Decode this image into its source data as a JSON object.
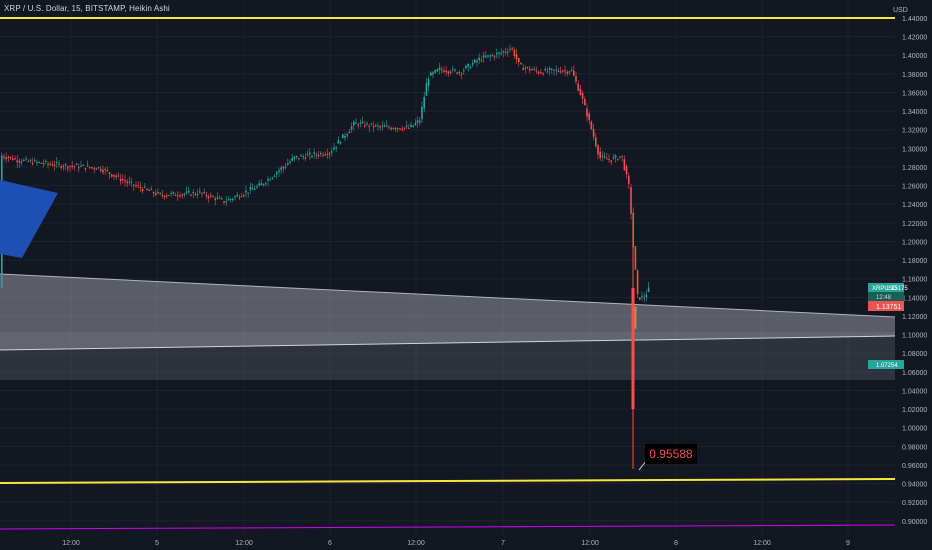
{
  "header": {
    "title": "XRP / U.S. Dollar, 15, BITSTAMP, Heikin Ashi"
  },
  "price_axis": {
    "currency": "USD",
    "ticks": [
      "1.44000",
      "1.42000",
      "1.40000",
      "1.38000",
      "1.36000",
      "1.34000",
      "1.32000",
      "1.30000",
      "1.28000",
      "1.26000",
      "1.24000",
      "1.22000",
      "1.20000",
      "1.18000",
      "1.16000",
      "1.14000",
      "1.12000",
      "1.10000",
      "1.08000",
      "1.06000",
      "1.04000",
      "1.02000",
      "1.00000",
      "0.98000",
      "0.96000",
      "0.94000",
      "0.92000",
      "0.90000"
    ]
  },
  "time_axis": {
    "ticks": [
      "12:00",
      "5",
      "12:00",
      "6",
      "12:00",
      "7",
      "12:00",
      "8",
      "12:00",
      "9"
    ]
  },
  "price_labels": {
    "current_label": "XRPUSD",
    "current_price": "1.15175",
    "countdown": "12:48",
    "open_price": "1.13751",
    "zone_price": "1.07254"
  },
  "annotation": {
    "low_label": "0.95588",
    "low_value": 0.95588
  },
  "colors": {
    "background": "#131722",
    "up": "#26a69a",
    "down": "#ef5350",
    "support_line": "#f5e73b",
    "magenta_line": "#d500f9",
    "arrow": "#1e50b4"
  },
  "chart_data": {
    "type": "candlestick",
    "style": "Heikin Ashi",
    "symbol": "XRP / U.S. Dollar",
    "exchange": "BITSTAMP",
    "interval": "15",
    "ylim": [
      0.895,
      1.445
    ],
    "grid": true,
    "horizontal_levels": [
      {
        "name": "resistance",
        "value": 1.441,
        "color": "#f5e73b"
      },
      {
        "name": "support",
        "value": 0.948,
        "color": "#f5e73b"
      }
    ],
    "trendlines": [
      {
        "name": "purple-line",
        "from": {
          "t": "4 00:00",
          "price": 0.897
        },
        "to": {
          "t": "9 12:00",
          "price": 0.902
        }
      }
    ],
    "price_path": [
      {
        "t": "4 00:00",
        "close": 1.295
      },
      {
        "t": "4 12:00",
        "close": 1.283
      },
      {
        "t": "5 00:00",
        "close": 1.25
      },
      {
        "t": "5 12:00",
        "close": 1.245
      },
      {
        "t": "6 00:00",
        "close": 1.29
      },
      {
        "t": "6 06:00",
        "close": 1.33
      },
      {
        "t": "6 12:00",
        "close": 1.325
      },
      {
        "t": "6 18:00",
        "close": 1.385
      },
      {
        "t": "7 00:00",
        "close": 1.405
      },
      {
        "t": "7 06:00",
        "close": 1.385
      },
      {
        "t": "7 12:00",
        "close": 1.29
      },
      {
        "t": "7 18:00",
        "close": 1.15
      }
    ],
    "session_low": 0.95588
  }
}
